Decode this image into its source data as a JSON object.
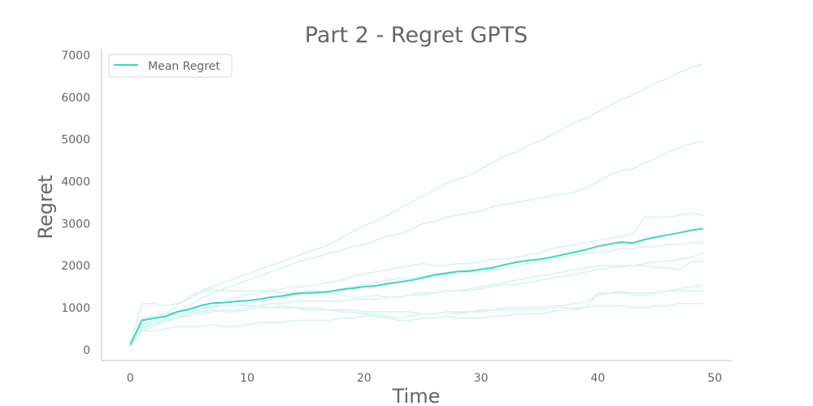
{
  "chart_data": {
    "type": "line",
    "title": "Part 2 - Regret GPTS",
    "xlabel": "Time",
    "ylabel": "Regret",
    "xlim": [
      -2.45,
      51.45
    ],
    "ylim": [
      -255,
      7155
    ],
    "xticks": [
      0,
      10,
      20,
      30,
      40,
      50
    ],
    "yticks": [
      0,
      1000,
      2000,
      3000,
      4000,
      5000,
      6000,
      7000
    ],
    "grid": false,
    "legend": "top-left",
    "mean_color": "#3fd3c6",
    "run_color": "#d4f4f1",
    "series": [
      {
        "name": "Mean Regret",
        "values": [
          120,
          700,
          750,
          790,
          900,
          960,
          1050,
          1110,
          1120,
          1150,
          1170,
          1200,
          1250,
          1280,
          1330,
          1350,
          1360,
          1380,
          1430,
          1460,
          1500,
          1520,
          1570,
          1610,
          1650,
          1710,
          1780,
          1820,
          1860,
          1870,
          1910,
          1950,
          2020,
          2080,
          2120,
          2150,
          2200,
          2260,
          2320,
          2380,
          2460,
          2510,
          2560,
          2540,
          2620,
          2680,
          2730,
          2780,
          2840,
          2880
        ]
      },
      {
        "values": [
          150,
          600,
          700,
          850,
          1050,
          1250,
          1400,
          1500,
          1600,
          1700,
          1800,
          1900,
          2000,
          2100,
          2200,
          2300,
          2400,
          2500,
          2650,
          2800,
          2950,
          3050,
          3200,
          3350,
          3500,
          3650,
          3800,
          3950,
          4050,
          4150,
          4300,
          4450,
          4600,
          4700,
          4850,
          4950,
          5100,
          5250,
          5400,
          5500,
          5650,
          5800,
          5950,
          6050,
          6200,
          6350,
          6450,
          6600,
          6700,
          6800
        ]
      },
      {
        "values": [
          130,
          500,
          600,
          750,
          900,
          1050,
          1200,
          1350,
          1450,
          1550,
          1650,
          1750,
          1850,
          1950,
          2050,
          2150,
          2200,
          2300,
          2350,
          2450,
          2500,
          2600,
          2700,
          2750,
          2850,
          3000,
          3050,
          3150,
          3200,
          3250,
          3300,
          3400,
          3450,
          3500,
          3550,
          3600,
          3650,
          3700,
          3750,
          3850,
          4000,
          4150,
          4250,
          4300,
          4450,
          4550,
          4700,
          4800,
          4900,
          4950
        ]
      },
      {
        "values": [
          100,
          450,
          550,
          650,
          750,
          850,
          950,
          1050,
          1150,
          1250,
          1300,
          1350,
          1400,
          1450,
          1500,
          1500,
          1550,
          1600,
          1650,
          1750,
          1800,
          1850,
          1900,
          1950,
          2000,
          2050,
          2000,
          2000,
          2050,
          2050,
          2100,
          2150,
          2150,
          2200,
          2250,
          2300,
          2400,
          2450,
          2500,
          2550,
          2600,
          2650,
          2700,
          2750,
          3150,
          3150,
          3150,
          3200,
          3250,
          3200
        ]
      },
      {
        "values": [
          140,
          650,
          750,
          800,
          850,
          900,
          950,
          1000,
          1050,
          1050,
          1100,
          1150,
          1200,
          1250,
          1300,
          1300,
          1350,
          1400,
          1450,
          1500,
          1550,
          1600,
          1650,
          1700,
          1700,
          1750,
          1750,
          1800,
          1800,
          1850,
          1850,
          1900,
          1950,
          2000,
          2050,
          2100,
          2150,
          2200,
          2250,
          2300,
          2300,
          2350,
          2400,
          2400,
          2450,
          2450,
          2500,
          2500,
          2550,
          2550
        ]
      },
      {
        "values": [
          160,
          1100,
          1100,
          1050,
          1100,
          1200,
          1350,
          1450,
          1400,
          1400,
          1400,
          1400,
          1400,
          1350,
          1350,
          1400,
          1400,
          1350,
          1300,
          1250,
          1250,
          1300,
          1250,
          1250,
          1300,
          1350,
          1350,
          1400,
          1400,
          1450,
          1500,
          1550,
          1600,
          1650,
          1700,
          1750,
          1800,
          1850,
          1900,
          1950,
          2000,
          2000,
          1950,
          2000,
          2050,
          2100,
          2100,
          2150,
          2200,
          2300
        ]
      },
      {
        "values": [
          120,
          550,
          600,
          700,
          750,
          800,
          850,
          900,
          950,
          950,
          1000,
          1050,
          1100,
          1100,
          1150,
          1150,
          1150,
          1150,
          1150,
          1200,
          1200,
          1200,
          1250,
          1250,
          1300,
          1300,
          1350,
          1400,
          1400,
          1400,
          1450,
          1500,
          1550,
          1550,
          1600,
          1650,
          1700,
          1750,
          1800,
          1850,
          1900,
          1950,
          2000,
          2000,
          2000,
          1950,
          1950,
          1900,
          2100,
          2100
        ]
      },
      {
        "values": [
          110,
          750,
          800,
          850,
          900,
          950,
          1000,
          1050,
          1050,
          1050,
          1050,
          1050,
          1000,
          1000,
          1000,
          950,
          950,
          950,
          950,
          950,
          900,
          900,
          900,
          900,
          900,
          850,
          850,
          900,
          900,
          900,
          950,
          950,
          1000,
          1000,
          1000,
          1000,
          1050,
          1050,
          1100,
          1150,
          1300,
          1350,
          1400,
          1300,
          1300,
          1350,
          1400,
          1450,
          1500,
          1550
        ]
      },
      {
        "values": [
          100,
          600,
          650,
          700,
          800,
          850,
          900,
          950,
          900,
          900,
          950,
          1000,
          1000,
          1050,
          1000,
          1000,
          1000,
          950,
          900,
          900,
          850,
          850,
          800,
          750,
          800,
          850,
          850,
          900,
          850,
          900,
          900,
          950,
          950,
          950,
          950,
          950,
          1000,
          1000,
          1000,
          1000,
          1350,
          1350,
          1350,
          1350,
          1350,
          1350,
          1400,
          1400,
          1400,
          1400
        ]
      },
      {
        "values": [
          90,
          450,
          450,
          500,
          550,
          550,
          550,
          600,
          550,
          550,
          600,
          650,
          650,
          650,
          700,
          700,
          700,
          700,
          750,
          750,
          800,
          800,
          750,
          700,
          700,
          750,
          750,
          800,
          750,
          750,
          750,
          800,
          800,
          850,
          850,
          850,
          900,
          950,
          950,
          1000,
          1050,
          1050,
          1050,
          1000,
          1000,
          1050,
          1050,
          1100,
          1100,
          1100
        ]
      }
    ]
  }
}
